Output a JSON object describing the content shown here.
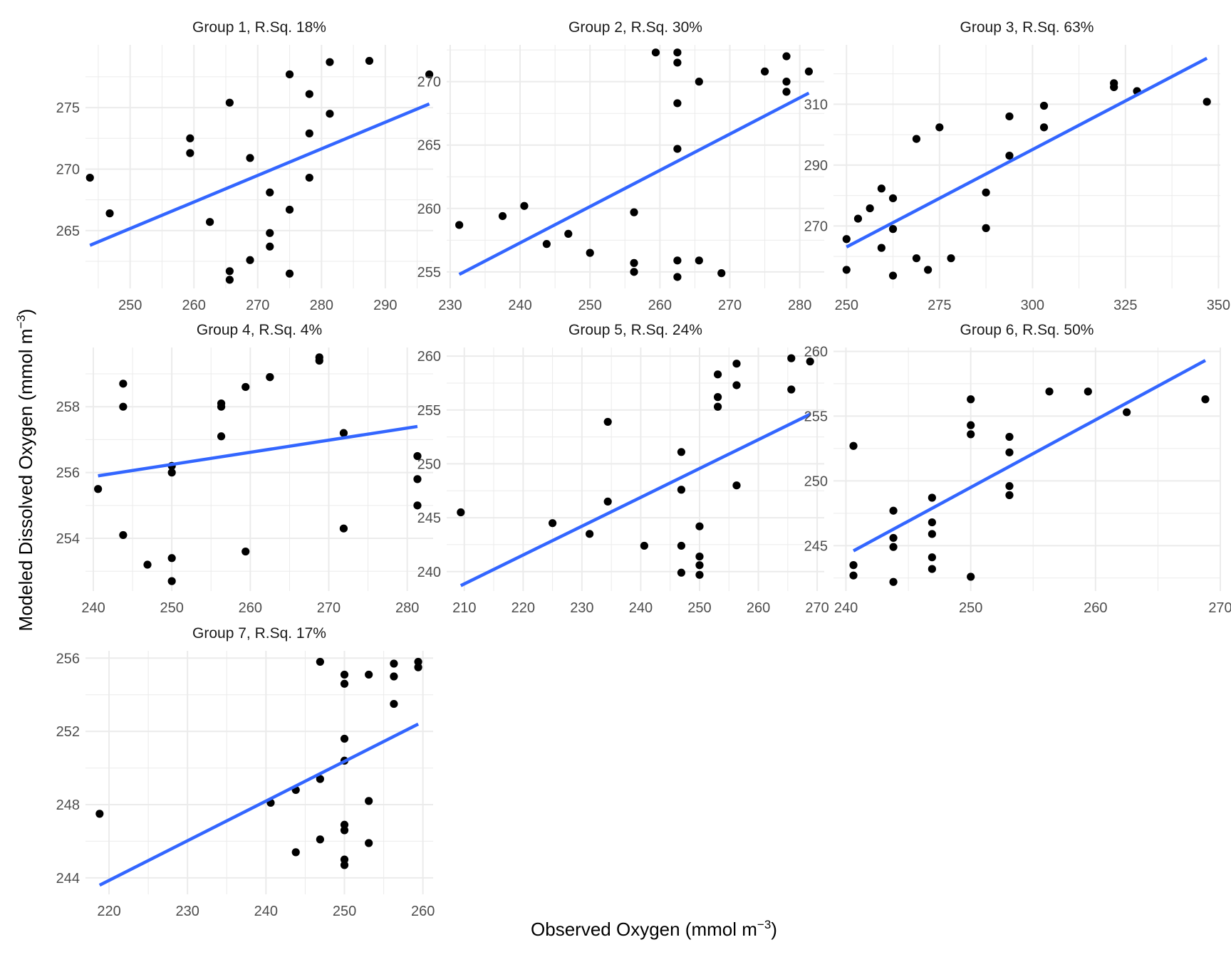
{
  "figure": {
    "xlabel": "Observed Oxygen (mmol m",
    "xlabel_sup": "−3",
    "xlabel_close": ")",
    "ylabel": "Modeled Dissolved Oxygen (mmol m",
    "ylabel_sup": "−3",
    "ylabel_close": ")",
    "colors": {
      "line": "#3366ff",
      "point": "#000000",
      "grid": "#ebebeb"
    }
  },
  "chart_data": [
    {
      "type": "scatter",
      "title": "Group 1, R.Sq. 18%",
      "xlim": [
        243,
        297.5
      ],
      "ylim": [
        260.3,
        280.1
      ],
      "xticks": [
        250,
        260,
        270,
        280,
        290
      ],
      "yticks": [
        265,
        270,
        275
      ],
      "points": [
        [
          243.7,
          269.3
        ],
        [
          246.8,
          266.4
        ],
        [
          259.4,
          272.5
        ],
        [
          259.4,
          271.3
        ],
        [
          262.5,
          265.7
        ],
        [
          265.6,
          275.4
        ],
        [
          265.6,
          261.7
        ],
        [
          265.6,
          261.0
        ],
        [
          268.8,
          270.9
        ],
        [
          268.8,
          262.6
        ],
        [
          271.9,
          268.1
        ],
        [
          271.9,
          264.8
        ],
        [
          271.9,
          263.7
        ],
        [
          275.0,
          277.7
        ],
        [
          275.0,
          266.7
        ],
        [
          275.0,
          261.5
        ],
        [
          278.1,
          276.1
        ],
        [
          278.1,
          272.9
        ],
        [
          278.1,
          269.3
        ],
        [
          281.3,
          278.7
        ],
        [
          281.3,
          274.5
        ],
        [
          287.5,
          278.8
        ],
        [
          296.9,
          277.7
        ]
      ],
      "fit": [
        [
          243.7,
          263.8
        ],
        [
          296.9,
          275.3
        ]
      ]
    },
    {
      "type": "scatter",
      "title": "Group 2, R.Sq. 30%",
      "xlim": [
        229.5,
        283.5
      ],
      "ylim": [
        253.7,
        272.9
      ],
      "xticks": [
        230,
        240,
        250,
        260,
        270,
        280
      ],
      "yticks": [
        255,
        260,
        265,
        270
      ],
      "points": [
        [
          231.3,
          258.7
        ],
        [
          237.5,
          259.4
        ],
        [
          240.6,
          260.2
        ],
        [
          243.8,
          257.2
        ],
        [
          246.9,
          258.0
        ],
        [
          250.0,
          256.5
        ],
        [
          256.3,
          259.7
        ],
        [
          256.3,
          255.7
        ],
        [
          256.3,
          255.0
        ],
        [
          259.4,
          272.3
        ],
        [
          262.5,
          272.3
        ],
        [
          262.5,
          271.5
        ],
        [
          262.5,
          268.3
        ],
        [
          262.5,
          264.7
        ],
        [
          262.5,
          255.9
        ],
        [
          262.5,
          254.6
        ],
        [
          265.6,
          270.0
        ],
        [
          265.6,
          255.9
        ],
        [
          268.8,
          254.9
        ],
        [
          275.0,
          270.8
        ],
        [
          278.1,
          272.0
        ],
        [
          278.1,
          270.0
        ],
        [
          278.1,
          269.2
        ],
        [
          281.3,
          270.8
        ]
      ],
      "fit": [
        [
          231.3,
          254.8
        ],
        [
          281.3,
          269.1
        ]
      ]
    },
    {
      "type": "scatter",
      "title": "Group 3, R.Sq. 63%",
      "xlim": [
        246.5,
        350.5
      ],
      "ylim": [
        249.5,
        329.5
      ],
      "xticks": [
        250,
        275,
        300,
        325,
        350
      ],
      "yticks": [
        270,
        290,
        310
      ],
      "points": [
        [
          250.0,
          265.7
        ],
        [
          250.0,
          255.6
        ],
        [
          253.1,
          272.4
        ],
        [
          256.3,
          275.8
        ],
        [
          259.4,
          282.3
        ],
        [
          259.4,
          262.8
        ],
        [
          262.5,
          279.1
        ],
        [
          262.5,
          269.0
        ],
        [
          262.5,
          253.7
        ],
        [
          268.8,
          298.6
        ],
        [
          268.8,
          259.4
        ],
        [
          271.9,
          255.6
        ],
        [
          275.0,
          302.4
        ],
        [
          278.1,
          259.4
        ],
        [
          287.5,
          281.0
        ],
        [
          287.5,
          269.3
        ],
        [
          293.8,
          306.0
        ],
        [
          293.8,
          293.1
        ],
        [
          303.1,
          309.5
        ],
        [
          303.1,
          302.4
        ],
        [
          321.9,
          316.9
        ],
        [
          321.9,
          315.6
        ],
        [
          328.1,
          314.3
        ],
        [
          346.9,
          310.8
        ]
      ],
      "fit": [
        [
          250.0,
          263.1
        ],
        [
          346.9,
          325.1
        ]
      ]
    },
    {
      "type": "scatter",
      "title": "Group 4, R.Sq. 4%",
      "xlim": [
        239,
        283.3
      ],
      "ylim": [
        252.4,
        259.8
      ],
      "xticks": [
        240,
        250,
        260,
        270,
        280
      ],
      "yticks": [
        254,
        256,
        258
      ],
      "points": [
        [
          240.6,
          255.5
        ],
        [
          243.8,
          258.7
        ],
        [
          243.8,
          258.0
        ],
        [
          243.8,
          254.1
        ],
        [
          246.9,
          253.2
        ],
        [
          250.0,
          256.2
        ],
        [
          250.0,
          256.0
        ],
        [
          250.0,
          253.4
        ],
        [
          250.0,
          252.7
        ],
        [
          256.3,
          258.1
        ],
        [
          256.3,
          258.0
        ],
        [
          256.3,
          257.1
        ],
        [
          259.4,
          258.6
        ],
        [
          259.4,
          253.6
        ],
        [
          262.5,
          258.9
        ],
        [
          262.5,
          258.9
        ],
        [
          268.8,
          259.5
        ],
        [
          268.8,
          259.4
        ],
        [
          271.9,
          257.2
        ],
        [
          271.9,
          254.3
        ],
        [
          281.3,
          256.5
        ],
        [
          281.3,
          255.8
        ],
        [
          281.3,
          255.0
        ]
      ],
      "fit": [
        [
          240.6,
          255.9
        ],
        [
          281.3,
          257.4
        ]
      ]
    },
    {
      "type": "scatter",
      "title": "Group 5, R.Sq. 24%",
      "xlim": [
        207,
        271.2
      ],
      "ylim": [
        238.2,
        260.8
      ],
      "xticks": [
        210,
        220,
        230,
        240,
        250,
        260,
        270
      ],
      "yticks": [
        240,
        245,
        250,
        255,
        260
      ],
      "points": [
        [
          209.4,
          245.5
        ],
        [
          225.0,
          244.5
        ],
        [
          231.3,
          243.5
        ],
        [
          234.4,
          253.9
        ],
        [
          234.4,
          246.5
        ],
        [
          240.6,
          242.4
        ],
        [
          246.9,
          251.1
        ],
        [
          246.9,
          247.6
        ],
        [
          246.9,
          242.4
        ],
        [
          246.9,
          239.9
        ],
        [
          250.0,
          244.2
        ],
        [
          250.0,
          241.4
        ],
        [
          250.0,
          240.6
        ],
        [
          250.0,
          239.7
        ],
        [
          253.1,
          258.3
        ],
        [
          253.1,
          256.2
        ],
        [
          253.1,
          255.3
        ],
        [
          256.3,
          259.3
        ],
        [
          256.3,
          257.3
        ],
        [
          256.3,
          248.0
        ],
        [
          265.6,
          259.8
        ],
        [
          265.6,
          256.9
        ],
        [
          268.8,
          259.5
        ]
      ],
      "fit": [
        [
          209.4,
          238.7
        ],
        [
          268.8,
          254.6
        ]
      ]
    },
    {
      "type": "scatter",
      "title": "Group 6, R.Sq. 50%",
      "xlim": [
        239,
        270
      ],
      "ylim": [
        241.5,
        260.3
      ],
      "xticks": [
        240,
        250,
        260,
        270
      ],
      "yticks": [
        245,
        250,
        255,
        260
      ],
      "points": [
        [
          240.6,
          252.7
        ],
        [
          240.6,
          243.5
        ],
        [
          240.6,
          242.7
        ],
        [
          243.8,
          247.7
        ],
        [
          243.8,
          245.6
        ],
        [
          243.8,
          244.9
        ],
        [
          243.8,
          242.2
        ],
        [
          246.9,
          248.7
        ],
        [
          246.9,
          246.8
        ],
        [
          246.9,
          245.9
        ],
        [
          246.9,
          244.1
        ],
        [
          246.9,
          243.2
        ],
        [
          250.0,
          256.3
        ],
        [
          250.0,
          254.3
        ],
        [
          250.0,
          253.6
        ],
        [
          250.0,
          242.6
        ],
        [
          253.1,
          253.4
        ],
        [
          253.1,
          252.2
        ],
        [
          253.1,
          249.6
        ],
        [
          253.1,
          248.9
        ],
        [
          256.3,
          256.9
        ],
        [
          259.4,
          256.9
        ],
        [
          262.5,
          255.3
        ],
        [
          268.8,
          256.3
        ]
      ],
      "fit": [
        [
          240.6,
          244.6
        ],
        [
          268.8,
          259.3
        ]
      ]
    },
    {
      "type": "scatter",
      "title": "Group 7, R.Sq. 17%",
      "xlim": [
        217,
        261.3
      ],
      "ylim": [
        243.1,
        256.4
      ],
      "xticks": [
        220,
        230,
        240,
        250,
        260
      ],
      "yticks": [
        244,
        248,
        252,
        256
      ],
      "points": [
        [
          218.8,
          247.5
        ],
        [
          240.6,
          248.1
        ],
        [
          243.8,
          248.8
        ],
        [
          243.8,
          245.4
        ],
        [
          246.9,
          255.8
        ],
        [
          246.9,
          249.4
        ],
        [
          246.9,
          246.1
        ],
        [
          250.0,
          255.1
        ],
        [
          250.0,
          254.6
        ],
        [
          250.0,
          251.6
        ],
        [
          250.0,
          250.4
        ],
        [
          250.0,
          246.9
        ],
        [
          250.0,
          246.6
        ],
        [
          250.0,
          245.0
        ],
        [
          250.0,
          244.7
        ],
        [
          253.1,
          255.1
        ],
        [
          253.1,
          248.2
        ],
        [
          253.1,
          245.9
        ],
        [
          256.3,
          255.7
        ],
        [
          256.3,
          255.0
        ],
        [
          256.3,
          253.5
        ],
        [
          259.4,
          255.8
        ],
        [
          259.4,
          255.5
        ]
      ],
      "fit": [
        [
          218.8,
          243.6
        ],
        [
          259.4,
          252.4
        ]
      ]
    }
  ]
}
